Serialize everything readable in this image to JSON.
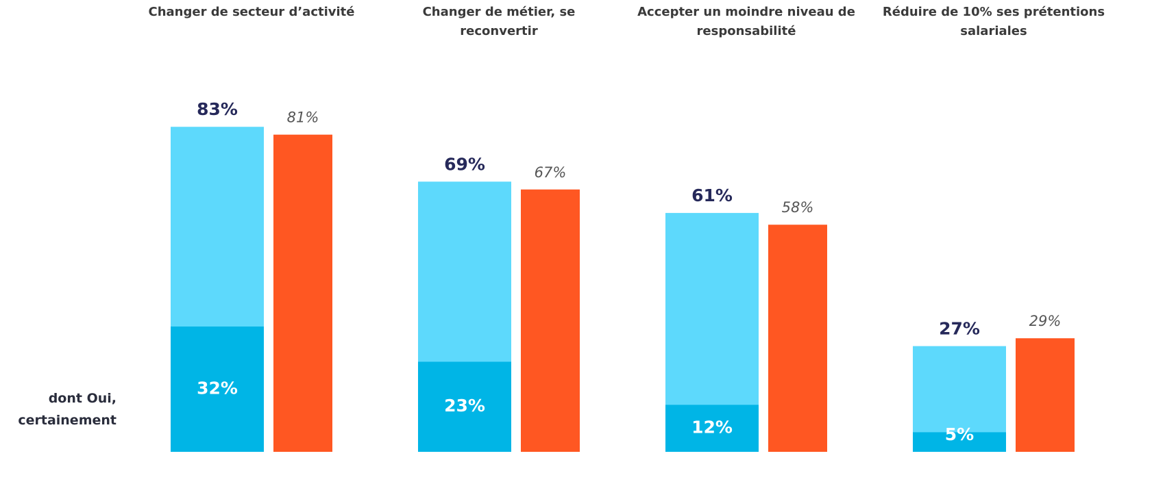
{
  "chart_data": {
    "type": "bar",
    "categories": [
      "Changer de secteur d’activité",
      "Changer de métier, se reconvertir",
      "Accepter un moindre niveau de responsabilité",
      "Réduire de 10% ses prétentions salariales"
    ],
    "series": [
      {
        "color": "#5dd9fc",
        "values": [
          83,
          69,
          61,
          27
        ],
        "value_labels": [
          "83%",
          "69%",
          "61%",
          "27%"
        ]
      },
      {
        "name": "dont Oui, certainement",
        "color": "#00b5e6",
        "values": [
          32,
          23,
          12,
          5
        ],
        "value_labels": [
          "32%",
          "23%",
          "12%",
          "5%"
        ]
      },
      {
        "color": "#ff5722",
        "values": [
          81,
          67,
          58,
          29
        ],
        "value_labels": [
          "81%",
          "67%",
          "58%",
          "29%"
        ]
      }
    ],
    "ylim": [
      0,
      100
    ]
  }
}
